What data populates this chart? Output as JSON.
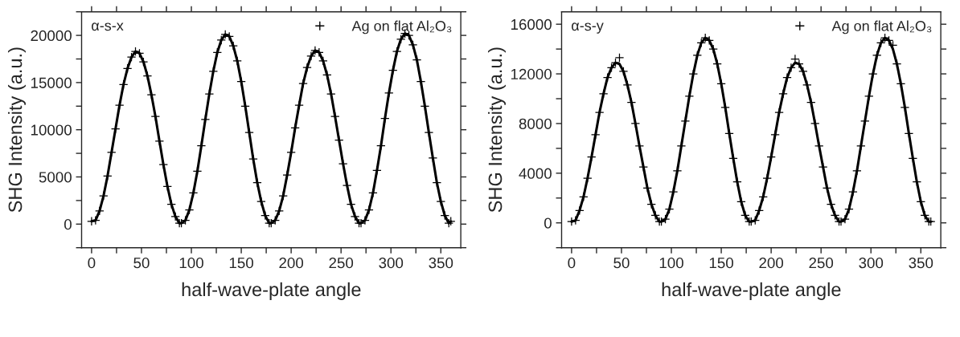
{
  "chart_data": [
    {
      "type": "scatter",
      "xlabel": "half-wave-plate angle",
      "ylabel": "SHG Intensity (a.u.)",
      "annotations": [
        "α-s-x"
      ],
      "legend": "top right",
      "marker": "cross",
      "grid": false,
      "xlim": [
        -10,
        370
      ],
      "xticks": [
        0,
        {
          "value": 25,
          "label": null
        },
        50,
        {
          "value": 75,
          "label": null
        },
        100,
        {
          "value": 125,
          "label": null
        },
        150,
        {
          "value": 175,
          "label": null
        },
        200,
        {
          "value": 225,
          "label": null
        },
        250,
        {
          "value": 275,
          "label": null
        },
        300,
        {
          "value": 325,
          "label": null
        },
        350
      ],
      "ylim": [
        -2500,
        22500
      ],
      "yticks": [
        {
          "value": -2500,
          "label": null
        },
        0,
        {
          "value": 2500,
          "label": null
        },
        5000,
        {
          "value": 7500,
          "label": null
        },
        10000,
        {
          "value": 12500,
          "label": null
        },
        15000,
        {
          "value": 17500,
          "label": null
        },
        20000,
        {
          "value": 22500,
          "label": null
        }
      ],
      "x": [
        0,
        4,
        8,
        12,
        16,
        20,
        24,
        28,
        32,
        36,
        40,
        44,
        48,
        52,
        56,
        60,
        64,
        68,
        72,
        76,
        80,
        84,
        88,
        90,
        94,
        98,
        102,
        106,
        110,
        114,
        118,
        122,
        126,
        130,
        134,
        138,
        142,
        146,
        150,
        154,
        158,
        162,
        166,
        170,
        174,
        178,
        180,
        184,
        188,
        192,
        196,
        200,
        204,
        208,
        212,
        216,
        220,
        224,
        228,
        232,
        236,
        240,
        244,
        248,
        252,
        256,
        260,
        264,
        268,
        270,
        274,
        278,
        282,
        286,
        290,
        294,
        298,
        302,
        306,
        310,
        314,
        318,
        322,
        326,
        330,
        334,
        338,
        342,
        346,
        350,
        354,
        358,
        360
      ],
      "series": [
        {
          "name": "Ag on flat Al₂O₃",
          "color": "#000000",
          "values": [
            300,
            400,
            1400,
            3000,
            5100,
            7600,
            10100,
            12600,
            14800,
            16500,
            17700,
            18300,
            18100,
            17200,
            15700,
            13700,
            11400,
            8800,
            6300,
            4000,
            2100,
            800,
            100,
            100,
            400,
            1500,
            3300,
            5600,
            8300,
            11100,
            13800,
            16200,
            18200,
            19500,
            20100,
            19900,
            18900,
            17300,
            15100,
            12500,
            9700,
            6900,
            4400,
            2400,
            900,
            100,
            100,
            400,
            1400,
            3000,
            5200,
            7600,
            10200,
            12600,
            14900,
            16600,
            17800,
            18400,
            18200,
            17300,
            15800,
            13800,
            11400,
            8900,
            6400,
            4100,
            2100,
            800,
            100,
            100,
            400,
            1500,
            3300,
            5700,
            8300,
            11200,
            13900,
            16300,
            18300,
            19600,
            20200,
            20000,
            19000,
            17400,
            15100,
            12500,
            9700,
            7000,
            4400,
            2400,
            900,
            100,
            300
          ]
        },
        {
          "type": "line",
          "marker": "none",
          "color": "#000000",
          "values": [
            300,
            400,
            1400,
            3000,
            5100,
            7600,
            10100,
            12600,
            14800,
            16500,
            17700,
            18300,
            18100,
            17200,
            15700,
            13700,
            11400,
            8800,
            6300,
            4000,
            2100,
            800,
            100,
            100,
            400,
            1500,
            3300,
            5600,
            8300,
            11100,
            13800,
            16200,
            18200,
            19500,
            20100,
            19900,
            18900,
            17300,
            15100,
            12500,
            9700,
            6900,
            4400,
            2400,
            900,
            100,
            100,
            400,
            1400,
            3000,
            5200,
            7600,
            10200,
            12600,
            14900,
            16600,
            17800,
            18400,
            18200,
            17300,
            15800,
            13800,
            11400,
            8900,
            6400,
            4100,
            2100,
            800,
            100,
            100,
            400,
            1500,
            3300,
            5700,
            8300,
            11200,
            13900,
            16300,
            18300,
            19600,
            20200,
            20000,
            19000,
            17400,
            15100,
            12500,
            9700,
            7000,
            4400,
            2400,
            900,
            100,
            300
          ]
        }
      ]
    },
    {
      "type": "scatter",
      "xlabel": "half-wave-plate angle",
      "ylabel": "SHG Intensity (a.u.)",
      "annotations": [
        "α-s-y"
      ],
      "legend": "top right",
      "marker": "cross",
      "grid": false,
      "xlim": [
        -10,
        370
      ],
      "xticks": [
        0,
        {
          "value": 25,
          "label": null
        },
        50,
        {
          "value": 75,
          "label": null
        },
        100,
        {
          "value": 125,
          "label": null
        },
        150,
        {
          "value": 175,
          "label": null
        },
        200,
        {
          "value": 225,
          "label": null
        },
        250,
        {
          "value": 275,
          "label": null
        },
        300,
        {
          "value": 325,
          "label": null
        },
        350
      ],
      "ylim": [
        -2000,
        17000
      ],
      "yticks": [
        {
          "value": -2000,
          "label": null
        },
        0,
        {
          "value": 2000,
          "label": null
        },
        4000,
        {
          "value": 6000,
          "label": null
        },
        8000,
        {
          "value": 10000,
          "label": null
        },
        12000,
        {
          "value": 14000,
          "label": null
        },
        16000
      ],
      "x": [
        0,
        4,
        8,
        12,
        16,
        20,
        24,
        28,
        32,
        36,
        40,
        44,
        48,
        52,
        56,
        60,
        64,
        68,
        72,
        76,
        80,
        84,
        88,
        90,
        94,
        98,
        102,
        106,
        110,
        114,
        118,
        122,
        126,
        130,
        134,
        138,
        142,
        146,
        150,
        154,
        158,
        162,
        166,
        170,
        174,
        178,
        180,
        184,
        188,
        192,
        196,
        200,
        204,
        208,
        212,
        216,
        220,
        224,
        228,
        232,
        236,
        240,
        244,
        248,
        252,
        256,
        260,
        264,
        268,
        270,
        274,
        278,
        282,
        286,
        290,
        294,
        298,
        302,
        306,
        310,
        314,
        318,
        322,
        326,
        330,
        334,
        338,
        342,
        346,
        350,
        354,
        358,
        360
      ],
      "series": [
        {
          "name": "Ag on flat Al₂O₃",
          "color": "#000000",
          "values": [
            100,
            200,
            1000,
            2100,
            3600,
            5300,
            7100,
            8900,
            10400,
            11700,
            12500,
            12900,
            13300,
            12200,
            11100,
            9700,
            8000,
            6200,
            4500,
            2800,
            1500,
            600,
            100,
            100,
            300,
            1100,
            2500,
            4200,
            6200,
            8200,
            10200,
            12000,
            13500,
            14500,
            14900,
            14700,
            14000,
            12800,
            11200,
            9300,
            7200,
            5200,
            3300,
            1700,
            600,
            100,
            100,
            200,
            1000,
            2100,
            3600,
            5300,
            7100,
            8900,
            10400,
            11700,
            12500,
            13200,
            12800,
            12200,
            11100,
            9700,
            8000,
            6200,
            4500,
            2800,
            1500,
            600,
            100,
            100,
            300,
            1100,
            2500,
            4200,
            6200,
            8200,
            10200,
            12000,
            13500,
            14500,
            14900,
            14700,
            14300,
            12800,
            11200,
            9300,
            7200,
            5200,
            3300,
            1700,
            600,
            100,
            100
          ]
        },
        {
          "type": "line",
          "marker": "none",
          "color": "#000000",
          "values": [
            100,
            200,
            1000,
            2100,
            3600,
            5300,
            7100,
            8900,
            10400,
            11700,
            12500,
            12900,
            12800,
            12200,
            11100,
            9700,
            8000,
            6200,
            4500,
            2800,
            1500,
            600,
            100,
            100,
            300,
            1100,
            2500,
            4200,
            6200,
            8200,
            10200,
            12000,
            13500,
            14500,
            14900,
            14700,
            14000,
            12800,
            11200,
            9300,
            7200,
            5200,
            3300,
            1700,
            600,
            100,
            100,
            200,
            1000,
            2100,
            3600,
            5300,
            7100,
            8900,
            10400,
            11700,
            12500,
            12900,
            12800,
            12200,
            11100,
            9700,
            8000,
            6200,
            4500,
            2800,
            1500,
            600,
            100,
            100,
            300,
            1100,
            2500,
            4200,
            6200,
            8200,
            10200,
            12000,
            13500,
            14500,
            14900,
            14700,
            14000,
            12800,
            11200,
            9300,
            7200,
            5200,
            3300,
            1700,
            600,
            100,
            100
          ]
        }
      ]
    }
  ]
}
